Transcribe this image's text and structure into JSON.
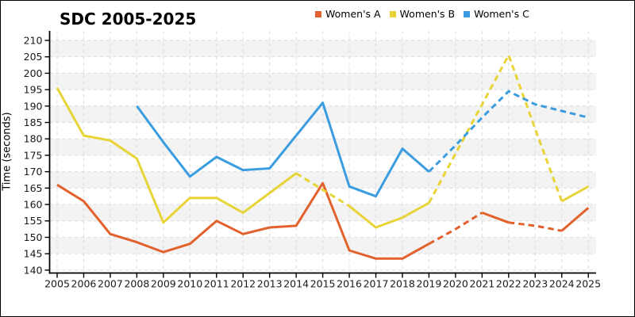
{
  "title": "SDC 2005-2025",
  "ylabel": "Time (seconds)",
  "colors": {
    "womens_a": "#e2612c",
    "womens_b": "#e8d437",
    "womens_c": "#3b9de0",
    "gridline": "#dcdcdc",
    "band": "#f3f3f3",
    "axis": "#000000"
  },
  "chart_data": {
    "type": "line",
    "title": "SDC 2005-2025",
    "xlabel": "",
    "ylabel": "Time (seconds)",
    "x": [
      2005,
      2006,
      2007,
      2008,
      2009,
      2010,
      2011,
      2012,
      2013,
      2014,
      2015,
      2016,
      2017,
      2018,
      2019,
      2020,
      2021,
      2022,
      2023,
      2024,
      2025
    ],
    "yticks": [
      140,
      145,
      150,
      155,
      160,
      165,
      170,
      175,
      180,
      185,
      190,
      195,
      200,
      205,
      210
    ],
    "ylim": [
      139,
      213
    ],
    "grid": true,
    "legend_position": "top-center",
    "series": [
      {
        "name": "Women's A",
        "color": "#e2612c",
        "values": [
          166,
          161,
          151,
          148.5,
          145.5,
          148,
          155,
          151,
          153,
          153.5,
          166.5,
          146,
          143.5,
          143.5,
          148,
          152.5,
          157.5,
          154.5,
          153.5,
          152,
          159
        ],
        "segments": [
          {
            "from": 2005,
            "to": 2019,
            "dashed": false
          },
          {
            "from": 2019,
            "to": 2021,
            "dashed": true
          },
          {
            "from": 2021,
            "to": 2022,
            "dashed": false
          },
          {
            "from": 2022,
            "to": 2024,
            "dashed": true
          },
          {
            "from": 2024,
            "to": 2025,
            "dashed": false
          }
        ]
      },
      {
        "name": "Women's B",
        "color": "#e8d437",
        "values": [
          195.5,
          181,
          179.5,
          174,
          154.5,
          162,
          162,
          157.5,
          163.5,
          169.5,
          164.5,
          159.5,
          153,
          156,
          160.5,
          175.5,
          190.5,
          205.5,
          183,
          161,
          165.5
        ],
        "segments": [
          {
            "from": 2005,
            "to": 2014,
            "dashed": false
          },
          {
            "from": 2014,
            "to": 2016,
            "dashed": true
          },
          {
            "from": 2016,
            "to": 2019,
            "dashed": false
          },
          {
            "from": 2019,
            "to": 2024,
            "dashed": true
          },
          {
            "from": 2024,
            "to": 2025,
            "dashed": false
          }
        ]
      },
      {
        "name": "Women's C",
        "color": "#3b9de0",
        "values": [
          null,
          null,
          null,
          190,
          179,
          168.5,
          174.5,
          170.5,
          171,
          181,
          191,
          165.5,
          162.5,
          177,
          170,
          178,
          186.5,
          194.5,
          190.5,
          188.5,
          186.5
        ],
        "segments": [
          {
            "from": 2008,
            "to": 2019,
            "dashed": false
          },
          {
            "from": 2019,
            "to": 2025,
            "dashed": true
          }
        ]
      }
    ]
  }
}
